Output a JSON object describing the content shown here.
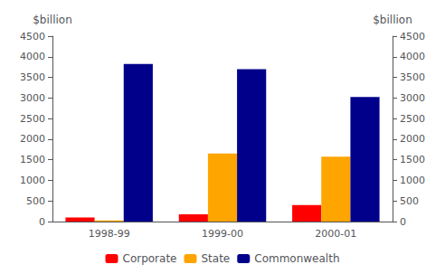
{
  "chart_data": {
    "type": "bar",
    "categories": [
      "1998-99",
      "1999-00",
      "2000-01"
    ],
    "series": [
      {
        "name": "Corporate",
        "color": "#FF0000",
        "values": [
          100,
          175,
          400
        ]
      },
      {
        "name": "State",
        "color": "#FFA500",
        "values": [
          25,
          1650,
          1575
        ]
      },
      {
        "name": "Commonwealth",
        "color": "#00008B",
        "values": [
          3825,
          3700,
          3025
        ]
      }
    ],
    "ylabel": "$billion",
    "y2label": "$billion",
    "ylim": [
      0,
      4500
    ],
    "yticks": [
      0,
      500,
      1000,
      1500,
      2000,
      2500,
      3000,
      3500,
      4000,
      4500
    ],
    "y2lim": [
      0,
      4500
    ],
    "y2ticks": [
      0,
      500,
      1000,
      1500,
      2000,
      2500,
      3000,
      3500,
      4000,
      4500
    ],
    "grid": false,
    "legend": "bottom"
  }
}
